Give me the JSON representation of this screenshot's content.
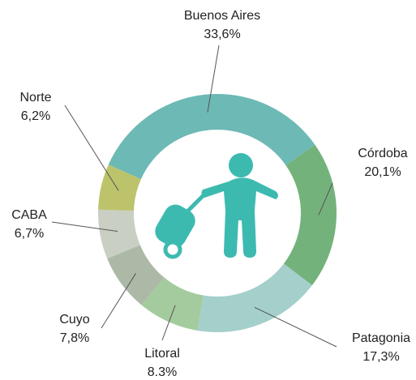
{
  "chart_data": {
    "type": "donut",
    "categories": [
      "Buenos Aires",
      "Córdoba",
      "Patagonia",
      "Litoral",
      "Cuyo",
      "CABA",
      "Norte"
    ],
    "values": [
      33.6,
      20.1,
      17.3,
      8.3,
      7.8,
      6.7,
      6.2
    ],
    "value_labels": [
      "33,6%",
      "20,1%",
      "17,3%",
      "8,3%",
      "7,8%",
      "6,7%",
      "6,2%"
    ],
    "colors": [
      "#6db9b5",
      "#74b27c",
      "#a4cfcb",
      "#a4cb9d",
      "#adb9a7",
      "#c9cfc3",
      "#bcc36b"
    ]
  }
}
